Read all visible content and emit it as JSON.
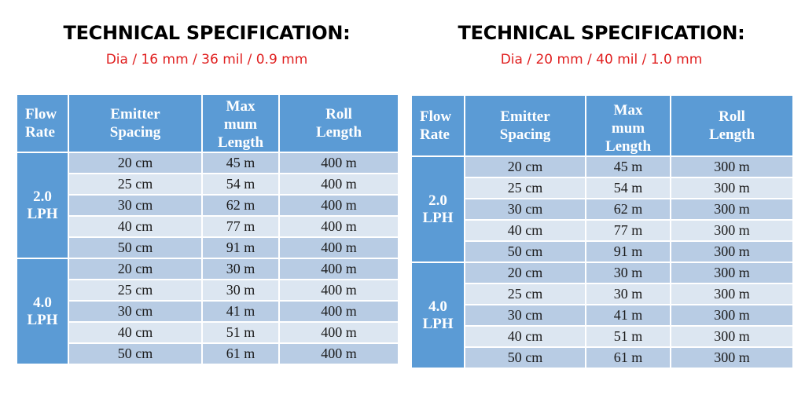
{
  "left": {
    "title": "TECHNICAL SPECIFICATION:",
    "subtitle": "Dia / 16 mm / 36 mil / 0.9 mm",
    "headers": {
      "flow_rate": [
        "Flow",
        "Rate"
      ],
      "emitter_spacing": [
        "Emitter",
        "Spacing"
      ],
      "max_length": [
        "Max",
        "mum",
        "Length"
      ],
      "roll_length": [
        "Roll",
        "Length"
      ]
    },
    "groups": [
      {
        "rate": [
          "2.0",
          "LPH"
        ],
        "rows": [
          {
            "spacing": "20 cm",
            "max": "45 m",
            "roll": "400 m"
          },
          {
            "spacing": "25 cm",
            "max": "54 m",
            "roll": "400 m"
          },
          {
            "spacing": "30 cm",
            "max": "62 m",
            "roll": "400 m"
          },
          {
            "spacing": "40 cm",
            "max": "77 m",
            "roll": "400 m"
          },
          {
            "spacing": "50 cm",
            "max": "91 m",
            "roll": "400 m"
          }
        ]
      },
      {
        "rate": [
          "4.0",
          "LPH"
        ],
        "rows": [
          {
            "spacing": "20 cm",
            "max": "30 m",
            "roll": "400 m"
          },
          {
            "spacing": "25 cm",
            "max": "30 m",
            "roll": "400 m"
          },
          {
            "spacing": "30 cm",
            "max": "41 m",
            "roll": "400 m"
          },
          {
            "spacing": "40 cm",
            "max": "51 m",
            "roll": "400 m"
          },
          {
            "spacing": "50 cm",
            "max": "61 m",
            "roll": "400 m"
          }
        ]
      }
    ]
  },
  "right": {
    "title": "TECHNICAL SPECIFICATION:",
    "subtitle": "Dia / 20 mm / 40 mil / 1.0 mm",
    "headers": {
      "flow_rate": [
        "Flow",
        "Rate"
      ],
      "emitter_spacing": [
        "Emitter",
        "Spacing"
      ],
      "max_length": [
        "Max",
        "mum",
        "Length"
      ],
      "roll_length": [
        "Roll",
        "Length"
      ]
    },
    "groups": [
      {
        "rate": [
          "2.0",
          "LPH"
        ],
        "rows": [
          {
            "spacing": "20 cm",
            "max": "45 m",
            "roll": "300 m"
          },
          {
            "spacing": "25 cm",
            "max": "54 m",
            "roll": "300 m"
          },
          {
            "spacing": "30 cm",
            "max": "62 m",
            "roll": "300 m"
          },
          {
            "spacing": "40 cm",
            "max": "77 m",
            "roll": "300 m"
          },
          {
            "spacing": "50 cm",
            "max": "91 m",
            "roll": "300 m"
          }
        ]
      },
      {
        "rate": [
          "4.0",
          "LPH"
        ],
        "rows": [
          {
            "spacing": "20 cm",
            "max": "30 m",
            "roll": "300 m"
          },
          {
            "spacing": "25 cm",
            "max": "30 m",
            "roll": "300 m"
          },
          {
            "spacing": "30 cm",
            "max": "41 m",
            "roll": "300 m"
          },
          {
            "spacing": "40 cm",
            "max": "51 m",
            "roll": "300 m"
          },
          {
            "spacing": "50 cm",
            "max": "61 m",
            "roll": "300 m"
          }
        ]
      }
    ]
  },
  "colors": {
    "header_blue": "#5b9bd5",
    "row_dark": "#b8cce4",
    "row_light": "#dce6f1",
    "subtitle_red": "#e01f1f"
  }
}
